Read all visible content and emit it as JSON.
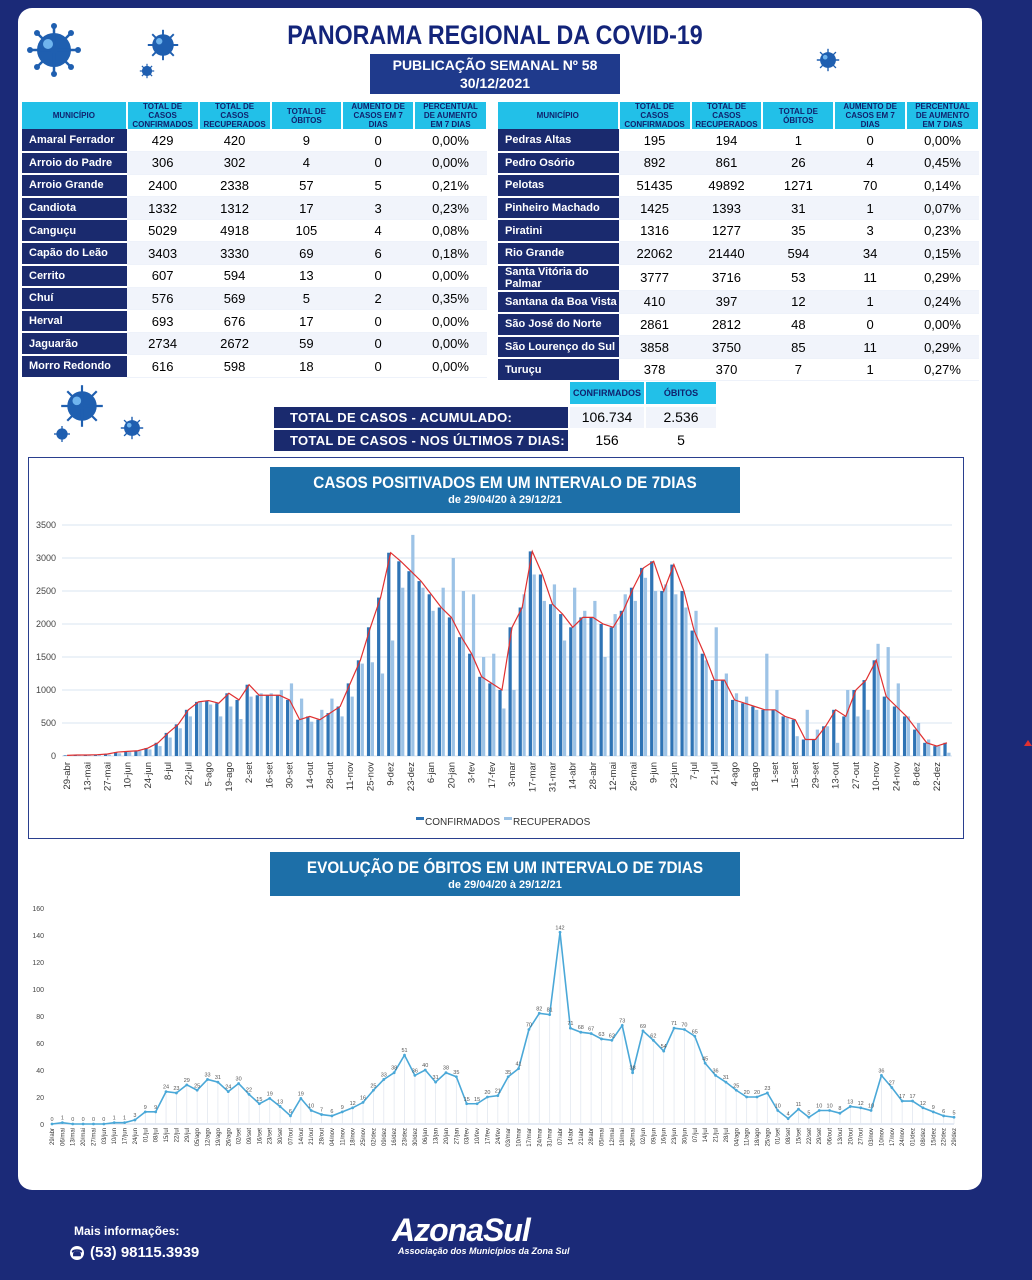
{
  "header": {
    "title": "PANORAMA REGIONAL DA COVID-19",
    "publication": "PUBLICAÇÃO SEMANAL Nº 58",
    "date": "30/12/2021"
  },
  "table_headers": [
    "MUNICÍPIO",
    "TOTAL DE CASOS CONFIRMADOS",
    "TOTAL DE CASOS RECUPERADOS",
    "TOTAL DE ÓBITOS",
    "AUMENTO DE CASOS EM 7 DIAS",
    "PERCENTUAL DE AUMENTO EM 7 DIAS"
  ],
  "table_left": [
    [
      "Amaral Ferrador",
      "429",
      "420",
      "9",
      "0",
      "0,00%"
    ],
    [
      "Arroio do Padre",
      "306",
      "302",
      "4",
      "0",
      "0,00%"
    ],
    [
      "Arroio Grande",
      "2400",
      "2338",
      "57",
      "5",
      "0,21%"
    ],
    [
      "Candiota",
      "1332",
      "1312",
      "17",
      "3",
      "0,23%"
    ],
    [
      "Canguçu",
      "5029",
      "4918",
      "105",
      "4",
      "0,08%"
    ],
    [
      "Capão do Leão",
      "3403",
      "3330",
      "69",
      "6",
      "0,18%"
    ],
    [
      "Cerrito",
      "607",
      "594",
      "13",
      "0",
      "0,00%"
    ],
    [
      "Chuí",
      "576",
      "569",
      "5",
      "2",
      "0,35%"
    ],
    [
      "Herval",
      "693",
      "676",
      "17",
      "0",
      "0,00%"
    ],
    [
      "Jaguarão",
      "2734",
      "2672",
      "59",
      "0",
      "0,00%"
    ],
    [
      "Morro Redondo",
      "616",
      "598",
      "18",
      "0",
      "0,00%"
    ]
  ],
  "table_right": [
    [
      "Pedras Altas",
      "195",
      "194",
      "1",
      "0",
      "0,00%"
    ],
    [
      "Pedro Osório",
      "892",
      "861",
      "26",
      "4",
      "0,45%"
    ],
    [
      "Pelotas",
      "51435",
      "49892",
      "1271",
      "70",
      "0,14%"
    ],
    [
      "Pinheiro Machado",
      "1425",
      "1393",
      "31",
      "1",
      "0,07%"
    ],
    [
      "Piratini",
      "1316",
      "1277",
      "35",
      "3",
      "0,23%"
    ],
    [
      "Rio Grande",
      "22062",
      "21440",
      "594",
      "34",
      "0,15%"
    ],
    [
      "Santa Vitória do Palmar",
      "3777",
      "3716",
      "53",
      "11",
      "0,29%"
    ],
    [
      "Santana da Boa Vista",
      "410",
      "397",
      "12",
      "1",
      "0,24%"
    ],
    [
      "São José do Norte",
      "2861",
      "2812",
      "48",
      "0",
      "0,00%"
    ],
    [
      "São Lourenço do Sul",
      "3858",
      "3750",
      "85",
      "11",
      "0,29%"
    ],
    [
      "Turuçu",
      "378",
      "370",
      "7",
      "1",
      "0,27%"
    ]
  ],
  "totals": {
    "head_confirmed": "CONFIRMADOS",
    "head_deaths": "ÓBITOS",
    "row1_label": "TOTAL DE CASOS  - ACUMULADO:",
    "row1_confirmed": "106.734",
    "row1_deaths": "2.536",
    "row2_label": "TOTAL DE CASOS  - NOS ÚLTIMOS 7 DIAS:",
    "row2_confirmed": "156",
    "row2_deaths": "5"
  },
  "footer": {
    "info": "Mais informações:",
    "phone": "(53) 98115.3939",
    "logo": "AzonaSul",
    "logo_sub": "Associação dos Municípios da Zona Sul"
  },
  "colors": {
    "navy": "#1b2a78",
    "cyan": "#22c0e8",
    "confirmed_bar": "#2f74b5",
    "recovered_bar": "#9dc3e6",
    "trend_line": "#e03030",
    "deaths_line": "#4aa8d8"
  },
  "chart_data": [
    {
      "type": "bar",
      "title": "CASOS POSITIVADOS EM UM INTERVALO DE 7DIAS",
      "subtitle": "de 29/04/20 à 29/12/21",
      "ylim": [
        0,
        3500
      ],
      "yticks": [
        0,
        500,
        1000,
        1500,
        2000,
        2500,
        3000,
        3500
      ],
      "grid": true,
      "legend": "bottom",
      "categories": [
        "29-abr",
        "6-mai",
        "13-mai",
        "20-mai",
        "27-mai",
        "3-jun",
        "10-jun",
        "17-jun",
        "24-jun",
        "1-jul",
        "8-jul",
        "15-jul",
        "22-jul",
        "29-jul",
        "5-ago",
        "12-ago",
        "19-ago",
        "26-ago",
        "2-set",
        "9-set",
        "16-set",
        "23-set",
        "30-set",
        "7-out",
        "14-out",
        "21-out",
        "28-out",
        "4-nov",
        "11-nov",
        "18-nov",
        "25-nov",
        "2-dez",
        "9-dez",
        "16-dez",
        "23-dez",
        "30-dez",
        "6-jan",
        "13-jan",
        "20-jan",
        "27-jan",
        "3-fev",
        "10-fev",
        "17-fev",
        "24-fev",
        "3-mar",
        "10-mar",
        "17-mar",
        "24-mar",
        "31-mar",
        "7-abr",
        "14-abr",
        "21-abr",
        "28-abr",
        "5-mai",
        "12-mai",
        "19-mai",
        "26-mai",
        "2-jun",
        "9-jun",
        "16-jun",
        "23-jun",
        "30-jun",
        "7-jul",
        "14-jul",
        "21-jul",
        "28-jul",
        "4-ago",
        "11-ago",
        "18-ago",
        "25-ago",
        "1-set",
        "8-set",
        "15-set",
        "22-set",
        "29-set",
        "6-out",
        "13-out",
        "20-out",
        "27-out",
        "3-nov",
        "10-nov",
        "17-nov",
        "24-nov",
        "1-dez",
        "8-dez",
        "15-dez",
        "22-dez",
        "29-dez"
      ],
      "series": [
        {
          "name": "CONFIRMADOS",
          "values": [
            10,
            15,
            15,
            20,
            30,
            60,
            70,
            80,
            120,
            200,
            350,
            480,
            700,
            820,
            840,
            800,
            950,
            850,
            1080,
            920,
            920,
            920,
            850,
            550,
            600,
            550,
            650,
            750,
            1100,
            1450,
            1950,
            2400,
            3080,
            2950,
            2800,
            2650,
            2450,
            2250,
            2100,
            1800,
            1550,
            1200,
            1100,
            1000,
            1950,
            2250,
            3100,
            2750,
            2300,
            2150,
            1950,
            2100,
            2100,
            2000,
            1950,
            2200,
            2550,
            2850,
            2950,
            2500,
            2900,
            2500,
            1900,
            1550,
            1150,
            1150,
            850,
            800,
            750,
            700,
            700,
            600,
            550,
            250,
            250,
            450,
            700,
            600,
            1000,
            1150,
            1450,
            900,
            750,
            600,
            400,
            200,
            150,
            200
          ]
        },
        {
          "name": "RECUPERADOS",
          "values": [
            5,
            10,
            10,
            15,
            20,
            40,
            60,
            80,
            100,
            150,
            280,
            420,
            600,
            820,
            780,
            600,
            750,
            560,
            900,
            950,
            950,
            1000,
            1100,
            870,
            520,
            700,
            870,
            600,
            900,
            1400,
            1420,
            1250,
            1750,
            2550,
            3350,
            2550,
            2200,
            2550,
            3000,
            2500,
            2450,
            1500,
            1550,
            720,
            1000,
            2450,
            2750,
            2350,
            2600,
            1750,
            2550,
            2200,
            2350,
            1500,
            2150,
            2450,
            2350,
            2700,
            2500,
            2600,
            2450,
            2250,
            2200,
            1450,
            1950,
            1250,
            950,
            900,
            700,
            1550,
            1000,
            580,
            300,
            700,
            400,
            450,
            200,
            1000,
            600,
            700,
            1700,
            1650,
            1100,
            600,
            500,
            250,
            150,
            50
          ]
        }
      ]
    },
    {
      "type": "line",
      "title": "EVOLUÇÃO DE ÓBITOS EM UM INTERVALO DE 7DIAS",
      "subtitle": "de 29/04/20 à 29/12/21",
      "ylim": [
        0,
        160
      ],
      "yticks": [
        0,
        20,
        40,
        60,
        80,
        100,
        120,
        140,
        160
      ],
      "grid": false,
      "categories": [
        "29/abr",
        "06/mai",
        "13/mai",
        "20/mai",
        "27/mai",
        "03/jun",
        "10/jun",
        "17/jun",
        "24/jun",
        "01/jul",
        "08/jul",
        "15/jul",
        "22/jul",
        "29/jul",
        "05/ago",
        "12/ago",
        "19/ago",
        "26/ago",
        "02/set",
        "09/set",
        "16/set",
        "23/set",
        "30/set",
        "07/out",
        "14/out",
        "21/out",
        "28/out",
        "04/nov",
        "11/nov",
        "18/nov",
        "25/nov",
        "02/dez",
        "09/dez",
        "16/dez",
        "23/dez",
        "30/dez",
        "06/jan",
        "13/jan",
        "20/jan",
        "27/jan",
        "03/fev",
        "10/fev",
        "17/fev",
        "24/fev",
        "03/mar",
        "10/mar",
        "17/mar",
        "24/mar",
        "31/mar",
        "07/abr",
        "14/abr",
        "21/abr",
        "28/abr",
        "05/mai",
        "12/mai",
        "19/mai",
        "26/mai",
        "02/jun",
        "09/jun",
        "16/jun",
        "23/jun",
        "30/jun",
        "07/jul",
        "14/jul",
        "21/jul",
        "28/jul",
        "04/ago",
        "11/ago",
        "18/ago",
        "25/ago",
        "01/set",
        "08/set",
        "15/set",
        "22/set",
        "29/set",
        "06/out",
        "13/out",
        "20/out",
        "27/out",
        "03/nov",
        "10/nov",
        "17/nov",
        "24/nov",
        "01/dez",
        "08/dez",
        "15/dez",
        "22/dez",
        "29/dez"
      ],
      "values": [
        0,
        1,
        0,
        0,
        0,
        0,
        1,
        1,
        3,
        9,
        9,
        24,
        23,
        29,
        25,
        33,
        31,
        24,
        30,
        22,
        15,
        19,
        13,
        6,
        19,
        10,
        7,
        6,
        9,
        12,
        16,
        25,
        33,
        38,
        51,
        36,
        40,
        31,
        38,
        35,
        15,
        15,
        20,
        21,
        35,
        41,
        70,
        82,
        81,
        142,
        71,
        68,
        67,
        63,
        62,
        73,
        38,
        69,
        62,
        54,
        71,
        70,
        65,
        45,
        36,
        31,
        25,
        20,
        20,
        23,
        10,
        4,
        11,
        5,
        10,
        10,
        8,
        13,
        12,
        10,
        36,
        27,
        17,
        17,
        12,
        9,
        6,
        5
      ],
      "labels": [
        {
          "category": "07/abr",
          "text": "142"
        }
      ]
    }
  ]
}
